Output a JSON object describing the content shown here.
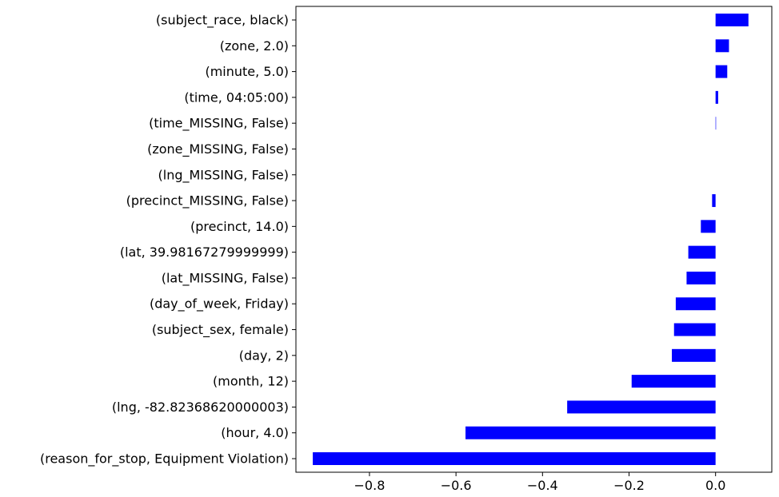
{
  "chart_data": {
    "type": "bar",
    "orientation": "horizontal",
    "title": "",
    "xlabel": "",
    "ylabel": "",
    "xlim": [
      -0.97,
      0.13
    ],
    "x_ticks": [
      -0.8,
      -0.6,
      -0.4,
      -0.2,
      0.0
    ],
    "x_tick_labels": [
      "−0.8",
      "−0.6",
      "−0.4",
      "−0.2",
      "0.0"
    ],
    "grid": false,
    "bar_color": "#0000ff",
    "categories": [
      "(subject_race, black)",
      "(zone, 2.0)",
      "(minute, 5.0)",
      "(time, 04:05:00)",
      "(time_MISSING, False)",
      "(zone_MISSING, False)",
      "(lng_MISSING, False)",
      "(precinct_MISSING, False)",
      "(precinct, 14.0)",
      "(lat, 39.98167279999999)",
      "(lat_MISSING, False)",
      "(day_of_week, Friday)",
      "(subject_sex, female)",
      "(day, 2)",
      "(month, 12)",
      "(lng, -82.82368620000003)",
      "(hour, 4.0)",
      "(reason_for_stop, Equipment Violation)"
    ],
    "values": [
      0.076,
      0.031,
      0.027,
      0.006,
      0.001,
      0.0,
      0.0,
      -0.008,
      -0.034,
      -0.063,
      -0.067,
      -0.092,
      -0.096,
      -0.101,
      -0.194,
      -0.343,
      -0.578,
      -0.931
    ]
  }
}
